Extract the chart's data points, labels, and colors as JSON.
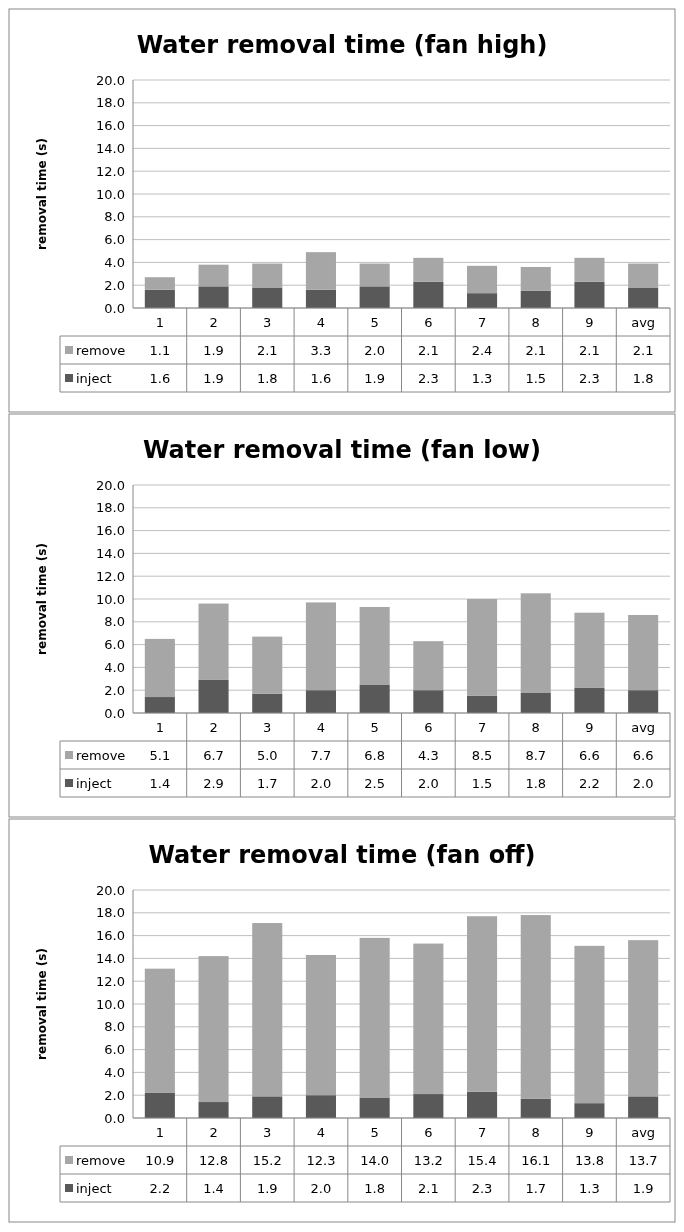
{
  "chart_data": [
    {
      "type": "bar",
      "title": "Water removal time (fan high)",
      "ylabel": "removal time (s)",
      "categories": [
        "1",
        "2",
        "3",
        "4",
        "5",
        "6",
        "7",
        "8",
        "9",
        "avg"
      ],
      "stacked": true,
      "grid": "y",
      "legend": "bottom",
      "ylim": [
        0,
        20
      ],
      "yticks": [
        {
          "value": 0,
          "label": "0.0"
        },
        {
          "value": 2,
          "label": "2.0"
        },
        {
          "value": 4,
          "label": "4.0"
        },
        {
          "value": 6,
          "label": "6.0"
        },
        {
          "value": 8,
          "label": "8.0"
        },
        {
          "value": 10,
          "label": "10.0"
        },
        {
          "value": 12,
          "label": "12.0"
        },
        {
          "value": 14,
          "label": "14.0"
        },
        {
          "value": 16,
          "label": "16.0"
        },
        {
          "value": 18,
          "label": "18.0"
        },
        {
          "value": 20,
          "label": "20.0"
        }
      ],
      "series": [
        {
          "name": "inject",
          "color": "#595959",
          "values": [
            1.6,
            1.9,
            1.8,
            1.6,
            1.9,
            2.3,
            1.3,
            1.5,
            2.3,
            1.8
          ],
          "value_labels": [
            "1.6",
            "1.9",
            "1.8",
            "1.6",
            "1.9",
            "2.3",
            "1.3",
            "1.5",
            "2.3",
            "1.8"
          ]
        },
        {
          "name": "remove",
          "color": "#a6a6a6",
          "values": [
            1.1,
            1.9,
            2.1,
            3.3,
            2.0,
            2.1,
            2.4,
            2.1,
            2.1,
            2.1
          ],
          "value_labels": [
            "1.1",
            "1.9",
            "2.1",
            "3.3",
            "2.0",
            "2.1",
            "2.4",
            "2.1",
            "2.1",
            "2.1"
          ]
        }
      ]
    },
    {
      "type": "bar",
      "title": "Water removal time (fan low)",
      "ylabel": "removal time (s)",
      "categories": [
        "1",
        "2",
        "3",
        "4",
        "5",
        "6",
        "7",
        "8",
        "9",
        "avg"
      ],
      "stacked": true,
      "grid": "y",
      "legend": "bottom",
      "ylim": [
        0,
        20
      ],
      "yticks": [
        {
          "value": 0,
          "label": "0.0"
        },
        {
          "value": 2,
          "label": "2.0"
        },
        {
          "value": 4,
          "label": "4.0"
        },
        {
          "value": 6,
          "label": "6.0"
        },
        {
          "value": 8,
          "label": "8.0"
        },
        {
          "value": 10,
          "label": "10.0"
        },
        {
          "value": 12,
          "label": "12.0"
        },
        {
          "value": 14,
          "label": "14.0"
        },
        {
          "value": 16,
          "label": "16.0"
        },
        {
          "value": 18,
          "label": "18.0"
        },
        {
          "value": 20,
          "label": "20.0"
        }
      ],
      "series": [
        {
          "name": "inject",
          "color": "#595959",
          "values": [
            1.4,
            2.9,
            1.7,
            2.0,
            2.5,
            2.0,
            1.5,
            1.8,
            2.2,
            2.0
          ],
          "value_labels": [
            "1.4",
            "2.9",
            "1.7",
            "2.0",
            "2.5",
            "2.0",
            "1.5",
            "1.8",
            "2.2",
            "2.0"
          ]
        },
        {
          "name": "remove",
          "color": "#a6a6a6",
          "values": [
            5.1,
            6.7,
            5.0,
            7.7,
            6.8,
            4.3,
            8.5,
            8.7,
            6.6,
            6.6
          ],
          "value_labels": [
            "5.1",
            "6.7",
            "5.0",
            "7.7",
            "6.8",
            "4.3",
            "8.5",
            "8.7",
            "6.6",
            "6.6"
          ]
        }
      ]
    },
    {
      "type": "bar",
      "title": "Water removal time (fan off)",
      "ylabel": "removal time (s)",
      "categories": [
        "1",
        "2",
        "3",
        "4",
        "5",
        "6",
        "7",
        "8",
        "9",
        "avg"
      ],
      "stacked": true,
      "grid": "y",
      "legend": "bottom",
      "ylim": [
        0,
        20
      ],
      "yticks": [
        {
          "value": 0,
          "label": "0.0"
        },
        {
          "value": 2,
          "label": "2.0"
        },
        {
          "value": 4,
          "label": "4.0"
        },
        {
          "value": 6,
          "label": "6.0"
        },
        {
          "value": 8,
          "label": "8.0"
        },
        {
          "value": 10,
          "label": "10.0"
        },
        {
          "value": 12,
          "label": "12.0"
        },
        {
          "value": 14,
          "label": "14.0"
        },
        {
          "value": 16,
          "label": "16.0"
        },
        {
          "value": 18,
          "label": "18.0"
        },
        {
          "value": 20,
          "label": "20.0"
        }
      ],
      "series": [
        {
          "name": "inject",
          "color": "#595959",
          "values": [
            2.2,
            1.4,
            1.9,
            2.0,
            1.8,
            2.1,
            2.3,
            1.7,
            1.3,
            1.9
          ],
          "value_labels": [
            "2.2",
            "1.4",
            "1.9",
            "2.0",
            "1.8",
            "2.1",
            "2.3",
            "1.7",
            "1.3",
            "1.9"
          ]
        },
        {
          "name": "remove",
          "color": "#a6a6a6",
          "values": [
            10.9,
            12.8,
            15.2,
            12.3,
            14.0,
            13.2,
            15.4,
            16.1,
            13.8,
            13.7
          ],
          "value_labels": [
            "10.9",
            "12.8",
            "15.2",
            "12.3",
            "14.0",
            "13.2",
            "15.4",
            "16.1",
            "13.8",
            "13.7"
          ]
        }
      ]
    }
  ]
}
